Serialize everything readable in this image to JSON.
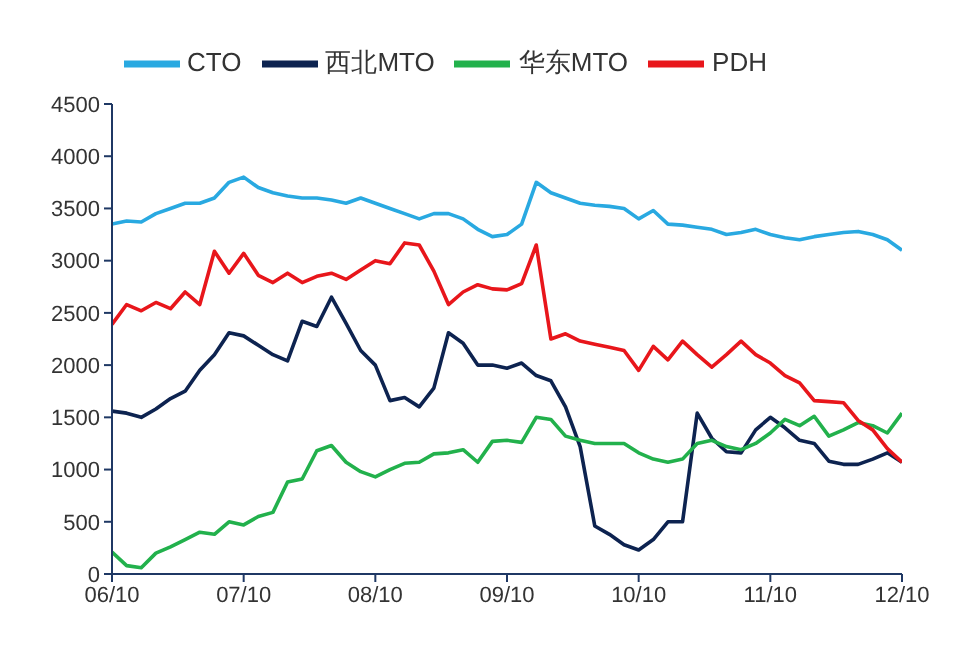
{
  "chart_data": {
    "type": "line",
    "categories": [
      "06/10",
      null,
      null,
      null,
      null,
      null,
      null,
      null,
      null,
      "07/10",
      null,
      null,
      null,
      null,
      null,
      null,
      null,
      null,
      "08/10",
      null,
      null,
      null,
      null,
      null,
      null,
      null,
      null,
      "09/10",
      null,
      null,
      null,
      null,
      null,
      null,
      null,
      null,
      "10/10",
      null,
      null,
      null,
      null,
      null,
      null,
      null,
      null,
      "11/10",
      null,
      null,
      null,
      null,
      null,
      null,
      null,
      null,
      "12/10"
    ],
    "series": [
      {
        "name": "CTO",
        "color": "#29a9e1",
        "values": [
          3350,
          3380,
          3370,
          3450,
          3500,
          3550,
          3550,
          3600,
          3750,
          3800,
          3700,
          3650,
          3620,
          3600,
          3600,
          3580,
          3550,
          3600,
          3550,
          3500,
          3450,
          3400,
          3450,
          3450,
          3400,
          3300,
          3230,
          3250,
          3350,
          3750,
          3650,
          3600,
          3550,
          3530,
          3520,
          3500,
          3400,
          3480,
          3350,
          3340,
          3320,
          3300,
          3250,
          3270,
          3300,
          3250,
          3220,
          3200,
          3230,
          3250,
          3270,
          3280,
          3250,
          3200,
          3100
        ]
      },
      {
        "name": "西北MTO",
        "color": "#0d2350",
        "values": [
          1560,
          1540,
          1500,
          1580,
          1680,
          1750,
          1950,
          2100,
          2310,
          2280,
          2190,
          2100,
          2040,
          2420,
          2370,
          2650,
          2400,
          2140,
          2000,
          1660,
          1690,
          1600,
          1780,
          2310,
          2210,
          2000,
          2000,
          1970,
          2020,
          1900,
          1850,
          1600,
          1220,
          460,
          380,
          280,
          230,
          330,
          500,
          500,
          1540,
          1300,
          1170,
          1160,
          1380,
          1500,
          1400,
          1280,
          1250,
          1080,
          1050,
          1050,
          1100,
          1160,
          1070
        ]
      },
      {
        "name": "华东MTO",
        "color": "#22b14c",
        "values": [
          210,
          80,
          60,
          200,
          260,
          330,
          400,
          380,
          500,
          470,
          550,
          590,
          880,
          910,
          1180,
          1230,
          1070,
          980,
          930,
          1000,
          1060,
          1070,
          1150,
          1160,
          1190,
          1070,
          1270,
          1280,
          1260,
          1500,
          1480,
          1320,
          1280,
          1250,
          1250,
          1250,
          1160,
          1100,
          1070,
          1100,
          1250,
          1280,
          1220,
          1190,
          1250,
          1350,
          1480,
          1420,
          1510,
          1320,
          1380,
          1450,
          1420,
          1350,
          1540
        ]
      },
      {
        "name": "PDH",
        "color": "#e8161b",
        "values": [
          2390,
          2580,
          2520,
          2600,
          2540,
          2700,
          2580,
          3090,
          2880,
          3070,
          2860,
          2790,
          2880,
          2790,
          2850,
          2880,
          2820,
          2910,
          3000,
          2970,
          3170,
          3150,
          2900,
          2580,
          2700,
          2770,
          2730,
          2720,
          2780,
          3150,
          2250,
          2300,
          2230,
          2200,
          2170,
          2140,
          1950,
          2180,
          2050,
          2230,
          2100,
          1980,
          2100,
          2230,
          2100,
          2020,
          1900,
          1830,
          1660,
          1650,
          1640,
          1470,
          1380,
          1200,
          1070
        ]
      }
    ],
    "ylim": [
      0,
      4500
    ],
    "yticks": [
      0,
      500,
      1000,
      1500,
      2000,
      2500,
      3000,
      3500,
      4000,
      4500
    ],
    "grid": false,
    "legend": "top",
    "marker": "none",
    "line_style": "solid"
  }
}
